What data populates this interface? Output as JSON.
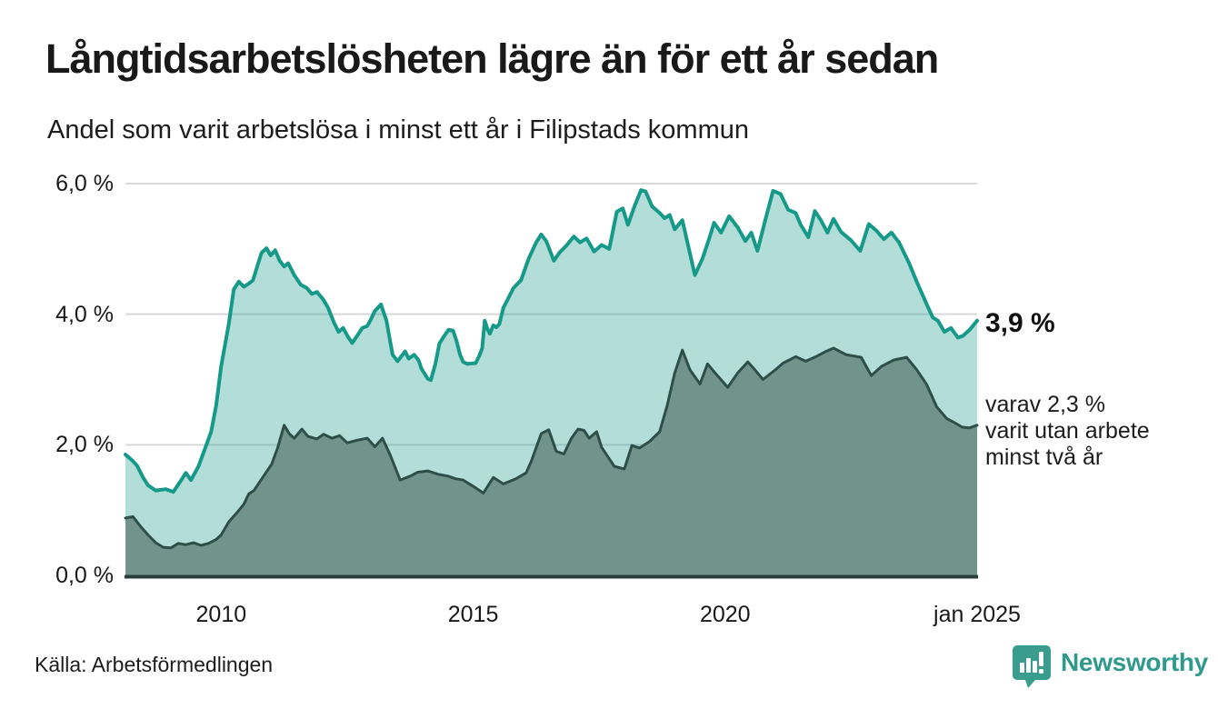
{
  "header": {
    "title": "Långtidsarbetslösheten lägre än för ett år sedan",
    "subtitle": "Andel som varit arbetslösa i minst ett år i Filipstads kommun"
  },
  "annotations": {
    "total_end_value": "3,9 %",
    "subset_line1": "varav 2,3 %",
    "subset_line2": "varit utan arbete",
    "subset_line3": "minst två år"
  },
  "footer": {
    "source": "Källa: Arbetsförmedlingen",
    "logo_text": "Newsworthy"
  },
  "colors": {
    "teal_line": "#17998a",
    "light_fill": "rgba(23,153,138,0.33)",
    "dark_line": "#2e4f47",
    "dark_fill": "#70948c",
    "axis_line": "#263f3a",
    "gridline": "#d9d9d9",
    "logo_teal": "#3a9c8c"
  },
  "chart_data": {
    "type": "area",
    "title": "Långtidsarbetslösheten lägre än för ett år sedan",
    "subtitle": "Andel som varit arbetslösa i minst ett år i Filipstads kommun",
    "legend_position": "none",
    "grid": true,
    "x_axis": {
      "range": [
        2008.1,
        2025.0
      ],
      "ticks": [
        {
          "x": 2010,
          "label": "2010"
        },
        {
          "x": 2015,
          "label": "2015"
        },
        {
          "x": 2020,
          "label": "2020"
        },
        {
          "x": 2025,
          "label": "jan 2025"
        }
      ]
    },
    "y_axis": {
      "range": [
        0,
        6
      ],
      "unit": "%",
      "ticks": [
        {
          "value": 6,
          "label": "6,0 %"
        },
        {
          "value": 4,
          "label": "4,0 %"
        },
        {
          "value": 2,
          "label": "2,0 %"
        },
        {
          "value": 0,
          "label": "0,0 %"
        }
      ]
    },
    "series": [
      {
        "name": "arbetslösa minst ett år",
        "end_label": "3,9 %",
        "end_value": 3.9,
        "points": [
          [
            2008.1,
            1.85
          ],
          [
            2008.25,
            1.75
          ],
          [
            2008.33,
            1.68
          ],
          [
            2008.45,
            1.5
          ],
          [
            2008.55,
            1.38
          ],
          [
            2008.7,
            1.3
          ],
          [
            2008.9,
            1.32
          ],
          [
            2009.05,
            1.28
          ],
          [
            2009.2,
            1.45
          ],
          [
            2009.3,
            1.57
          ],
          [
            2009.4,
            1.46
          ],
          [
            2009.55,
            1.67
          ],
          [
            2009.65,
            1.88
          ],
          [
            2009.8,
            2.2
          ],
          [
            2009.9,
            2.6
          ],
          [
            2010.0,
            3.2
          ],
          [
            2010.15,
            3.85
          ],
          [
            2010.25,
            4.38
          ],
          [
            2010.35,
            4.5
          ],
          [
            2010.45,
            4.42
          ],
          [
            2010.55,
            4.47
          ],
          [
            2010.63,
            4.52
          ],
          [
            2010.73,
            4.77
          ],
          [
            2010.8,
            4.94
          ],
          [
            2010.9,
            5.01
          ],
          [
            2010.98,
            4.9
          ],
          [
            2011.07,
            4.98
          ],
          [
            2011.16,
            4.82
          ],
          [
            2011.25,
            4.73
          ],
          [
            2011.33,
            4.78
          ],
          [
            2011.45,
            4.6
          ],
          [
            2011.58,
            4.45
          ],
          [
            2011.7,
            4.4
          ],
          [
            2011.8,
            4.31
          ],
          [
            2011.9,
            4.34
          ],
          [
            2012.03,
            4.22
          ],
          [
            2012.12,
            4.1
          ],
          [
            2012.24,
            3.87
          ],
          [
            2012.33,
            3.73
          ],
          [
            2012.42,
            3.79
          ],
          [
            2012.51,
            3.66
          ],
          [
            2012.6,
            3.56
          ],
          [
            2012.7,
            3.67
          ],
          [
            2012.8,
            3.79
          ],
          [
            2012.9,
            3.82
          ],
          [
            2012.97,
            3.92
          ],
          [
            2013.05,
            4.05
          ],
          [
            2013.17,
            4.15
          ],
          [
            2013.28,
            3.9
          ],
          [
            2013.4,
            3.38
          ],
          [
            2013.5,
            3.28
          ],
          [
            2013.65,
            3.43
          ],
          [
            2013.72,
            3.32
          ],
          [
            2013.83,
            3.38
          ],
          [
            2013.92,
            3.29
          ],
          [
            2013.97,
            3.17
          ],
          [
            2014.1,
            3.01
          ],
          [
            2014.16,
            2.99
          ],
          [
            2014.25,
            3.24
          ],
          [
            2014.33,
            3.55
          ],
          [
            2014.42,
            3.66
          ],
          [
            2014.51,
            3.76
          ],
          [
            2014.6,
            3.75
          ],
          [
            2014.67,
            3.59
          ],
          [
            2014.74,
            3.38
          ],
          [
            2014.8,
            3.27
          ],
          [
            2014.88,
            3.24
          ],
          [
            2015.05,
            3.25
          ],
          [
            2015.12,
            3.36
          ],
          [
            2015.18,
            3.48
          ],
          [
            2015.23,
            3.9
          ],
          [
            2015.28,
            3.78
          ],
          [
            2015.33,
            3.7
          ],
          [
            2015.4,
            3.83
          ],
          [
            2015.46,
            3.8
          ],
          [
            2015.52,
            3.85
          ],
          [
            2015.6,
            4.1
          ],
          [
            2015.68,
            4.22
          ],
          [
            2015.8,
            4.4
          ],
          [
            2015.95,
            4.52
          ],
          [
            2016.1,
            4.85
          ],
          [
            2016.25,
            5.1
          ],
          [
            2016.35,
            5.22
          ],
          [
            2016.45,
            5.12
          ],
          [
            2016.6,
            4.82
          ],
          [
            2016.72,
            4.95
          ],
          [
            2016.85,
            5.05
          ],
          [
            2017.0,
            5.19
          ],
          [
            2017.12,
            5.1
          ],
          [
            2017.25,
            5.16
          ],
          [
            2017.4,
            4.96
          ],
          [
            2017.55,
            5.06
          ],
          [
            2017.7,
            5.0
          ],
          [
            2017.85,
            5.57
          ],
          [
            2017.97,
            5.62
          ],
          [
            2018.07,
            5.37
          ],
          [
            2018.2,
            5.65
          ],
          [
            2018.33,
            5.9
          ],
          [
            2018.42,
            5.88
          ],
          [
            2018.55,
            5.65
          ],
          [
            2018.7,
            5.55
          ],
          [
            2018.8,
            5.47
          ],
          [
            2018.9,
            5.52
          ],
          [
            2019.0,
            5.3
          ],
          [
            2019.15,
            5.44
          ],
          [
            2019.28,
            5.0
          ],
          [
            2019.4,
            4.6
          ],
          [
            2019.55,
            4.85
          ],
          [
            2019.68,
            5.15
          ],
          [
            2019.78,
            5.4
          ],
          [
            2019.92,
            5.25
          ],
          [
            2020.08,
            5.5
          ],
          [
            2020.25,
            5.33
          ],
          [
            2020.4,
            5.12
          ],
          [
            2020.52,
            5.25
          ],
          [
            2020.64,
            4.97
          ],
          [
            2020.8,
            5.45
          ],
          [
            2020.95,
            5.89
          ],
          [
            2021.1,
            5.84
          ],
          [
            2021.25,
            5.6
          ],
          [
            2021.4,
            5.55
          ],
          [
            2021.5,
            5.37
          ],
          [
            2021.65,
            5.18
          ],
          [
            2021.78,
            5.58
          ],
          [
            2021.9,
            5.44
          ],
          [
            2022.03,
            5.25
          ],
          [
            2022.15,
            5.46
          ],
          [
            2022.3,
            5.26
          ],
          [
            2022.5,
            5.13
          ],
          [
            2022.68,
            4.97
          ],
          [
            2022.85,
            5.38
          ],
          [
            2023.0,
            5.28
          ],
          [
            2023.15,
            5.15
          ],
          [
            2023.3,
            5.25
          ],
          [
            2023.45,
            5.1
          ],
          [
            2023.65,
            4.78
          ],
          [
            2023.8,
            4.5
          ],
          [
            2024.0,
            4.15
          ],
          [
            2024.12,
            3.95
          ],
          [
            2024.22,
            3.9
          ],
          [
            2024.35,
            3.73
          ],
          [
            2024.48,
            3.79
          ],
          [
            2024.62,
            3.64
          ],
          [
            2024.72,
            3.67
          ],
          [
            2024.85,
            3.76
          ],
          [
            2025.0,
            3.9
          ]
        ]
      },
      {
        "name": "varav utan arbete minst två år",
        "end_label": "varav 2,3 % varit utan arbete minst två år",
        "end_value": 2.3,
        "points": [
          [
            2008.1,
            0.88
          ],
          [
            2008.25,
            0.9
          ],
          [
            2008.4,
            0.75
          ],
          [
            2008.55,
            0.62
          ],
          [
            2008.7,
            0.5
          ],
          [
            2008.85,
            0.43
          ],
          [
            2009.0,
            0.42
          ],
          [
            2009.15,
            0.49
          ],
          [
            2009.3,
            0.47
          ],
          [
            2009.45,
            0.5
          ],
          [
            2009.6,
            0.46
          ],
          [
            2009.75,
            0.49
          ],
          [
            2009.9,
            0.55
          ],
          [
            2010.0,
            0.62
          ],
          [
            2010.15,
            0.82
          ],
          [
            2010.3,
            0.95
          ],
          [
            2010.45,
            1.09
          ],
          [
            2010.55,
            1.25
          ],
          [
            2010.65,
            1.3
          ],
          [
            2010.85,
            1.53
          ],
          [
            2011.0,
            1.7
          ],
          [
            2011.12,
            1.95
          ],
          [
            2011.25,
            2.3
          ],
          [
            2011.35,
            2.17
          ],
          [
            2011.45,
            2.1
          ],
          [
            2011.6,
            2.24
          ],
          [
            2011.72,
            2.13
          ],
          [
            2011.9,
            2.09
          ],
          [
            2012.03,
            2.16
          ],
          [
            2012.2,
            2.1
          ],
          [
            2012.35,
            2.14
          ],
          [
            2012.5,
            2.03
          ],
          [
            2012.7,
            2.07
          ],
          [
            2012.9,
            2.1
          ],
          [
            2013.05,
            1.97
          ],
          [
            2013.2,
            2.1
          ],
          [
            2013.35,
            1.85
          ],
          [
            2013.55,
            1.46
          ],
          [
            2013.75,
            1.52
          ],
          [
            2013.9,
            1.58
          ],
          [
            2014.1,
            1.6
          ],
          [
            2014.3,
            1.55
          ],
          [
            2014.5,
            1.52
          ],
          [
            2014.65,
            1.48
          ],
          [
            2014.8,
            1.46
          ],
          [
            2015.05,
            1.34
          ],
          [
            2015.2,
            1.26
          ],
          [
            2015.4,
            1.5
          ],
          [
            2015.6,
            1.4
          ],
          [
            2015.85,
            1.48
          ],
          [
            2016.05,
            1.57
          ],
          [
            2016.15,
            1.74
          ],
          [
            2016.35,
            2.17
          ],
          [
            2016.5,
            2.23
          ],
          [
            2016.65,
            1.9
          ],
          [
            2016.8,
            1.86
          ],
          [
            2016.95,
            2.1
          ],
          [
            2017.08,
            2.24
          ],
          [
            2017.2,
            2.22
          ],
          [
            2017.3,
            2.1
          ],
          [
            2017.45,
            2.2
          ],
          [
            2017.55,
            1.96
          ],
          [
            2017.8,
            1.67
          ],
          [
            2018.0,
            1.63
          ],
          [
            2018.15,
            1.99
          ],
          [
            2018.3,
            1.95
          ],
          [
            2018.5,
            2.05
          ],
          [
            2018.7,
            2.2
          ],
          [
            2018.85,
            2.6
          ],
          [
            2019.0,
            3.1
          ],
          [
            2019.15,
            3.45
          ],
          [
            2019.3,
            3.15
          ],
          [
            2019.5,
            2.93
          ],
          [
            2019.65,
            3.24
          ],
          [
            2019.8,
            3.1
          ],
          [
            2020.05,
            2.88
          ],
          [
            2020.25,
            3.1
          ],
          [
            2020.45,
            3.27
          ],
          [
            2020.6,
            3.14
          ],
          [
            2020.75,
            3.0
          ],
          [
            2021.0,
            3.15
          ],
          [
            2021.15,
            3.25
          ],
          [
            2021.4,
            3.35
          ],
          [
            2021.6,
            3.28
          ],
          [
            2021.8,
            3.35
          ],
          [
            2022.0,
            3.43
          ],
          [
            2022.15,
            3.48
          ],
          [
            2022.4,
            3.38
          ],
          [
            2022.7,
            3.34
          ],
          [
            2022.9,
            3.06
          ],
          [
            2023.1,
            3.2
          ],
          [
            2023.35,
            3.3
          ],
          [
            2023.6,
            3.34
          ],
          [
            2023.8,
            3.15
          ],
          [
            2024.0,
            2.92
          ],
          [
            2024.2,
            2.58
          ],
          [
            2024.4,
            2.4
          ],
          [
            2024.55,
            2.34
          ],
          [
            2024.7,
            2.27
          ],
          [
            2024.85,
            2.26
          ],
          [
            2025.0,
            2.3
          ]
        ]
      }
    ]
  }
}
